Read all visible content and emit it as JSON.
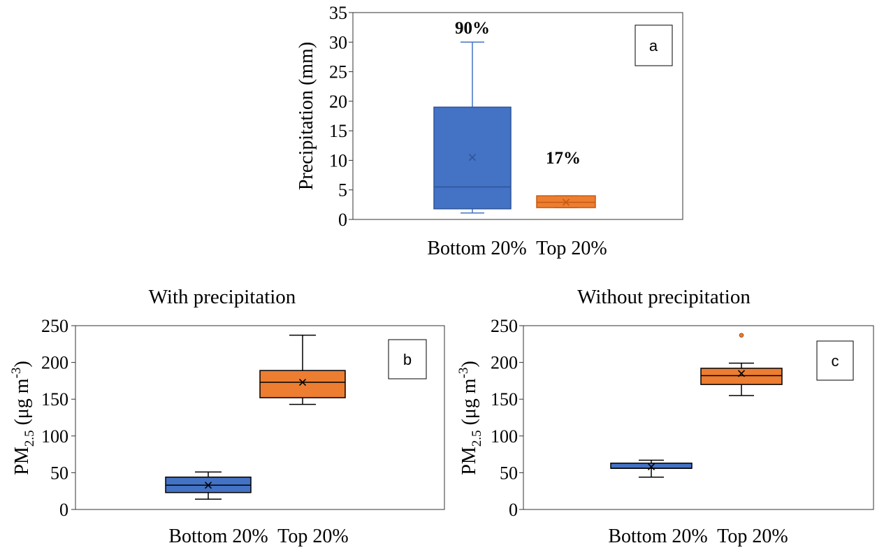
{
  "chart_data": [
    {
      "type": "box",
      "panel": "a",
      "title": "",
      "ylabel": "Precipitation (mm)",
      "ylim": [
        0,
        35
      ],
      "yticks": [
        0,
        5,
        10,
        15,
        20,
        25,
        30,
        35
      ],
      "categories": [
        "Bottom 20%",
        "Top 20%"
      ],
      "category_label": "Bottom 20%  Top 20%",
      "boxes": [
        {
          "name": "Bottom 20%",
          "color": "#4472C4",
          "stroke": "#2F5597",
          "whisker": "#4472C4",
          "mean_color": "#2F5597",
          "min": 1.1,
          "q1": 1.8,
          "median": 5.5,
          "q3": 19.0,
          "max": 30.0,
          "mean": 10.5,
          "outliers": [],
          "annotation": "90%",
          "annotation_y": 32.5
        },
        {
          "name": "Top 20%",
          "color": "#ED7D31",
          "stroke": "#C55A11",
          "whisker": "#ED7D31",
          "mean_color": "#C55A11",
          "min": 2.0,
          "q1": 2.0,
          "median": 2.9,
          "q3": 4.0,
          "max": 4.0,
          "mean": 2.9,
          "outliers": [],
          "annotation": "17%",
          "annotation_y": 10.5
        }
      ]
    },
    {
      "type": "box",
      "panel": "b",
      "title": "With precipitation",
      "ylabel_main": "PM",
      "ylabel_sub": "2.5",
      "ylabel_unit": " (μg m",
      "ylabel_sup": "-3",
      "ylabel_close": ")",
      "ylim": [
        0,
        250
      ],
      "yticks": [
        0,
        50,
        100,
        150,
        200,
        250
      ],
      "categories": [
        "Bottom 20%",
        "Top 20%"
      ],
      "category_label": "Bottom 20%  Top 20%",
      "boxes": [
        {
          "name": "Bottom 20%",
          "color": "#4472C4",
          "stroke": "#000000",
          "whisker": "#000000",
          "mean_color": "#000000",
          "min": 14,
          "q1": 23,
          "median": 33,
          "q3": 44,
          "max": 51,
          "mean": 33,
          "outliers": []
        },
        {
          "name": "Top 20%",
          "color": "#ED7D31",
          "stroke": "#000000",
          "whisker": "#000000",
          "mean_color": "#000000",
          "min": 143,
          "q1": 152,
          "median": 173,
          "q3": 189,
          "max": 237,
          "mean": 173,
          "outliers": []
        }
      ]
    },
    {
      "type": "box",
      "panel": "c",
      "title": "Without precipitation",
      "ylabel_main": "PM",
      "ylabel_sub": "2.5",
      "ylabel_unit": " (μg m",
      "ylabel_sup": "-3",
      "ylabel_close": ")",
      "ylim": [
        0,
        250
      ],
      "yticks": [
        0,
        50,
        100,
        150,
        200,
        250
      ],
      "categories": [
        "Bottom 20%",
        "Top 20%"
      ],
      "category_label": "Bottom 20%  Top 20%",
      "boxes": [
        {
          "name": "Bottom 20%",
          "color": "#4472C4",
          "stroke": "#000000",
          "whisker": "#000000",
          "mean_color": "#000000",
          "min": 44,
          "q1": 56,
          "median": 56,
          "q3": 63,
          "max": 67,
          "mean": 58,
          "outliers": []
        },
        {
          "name": "Top 20%",
          "color": "#ED7D31",
          "stroke": "#000000",
          "whisker": "#000000",
          "mean_color": "#000000",
          "min": 155,
          "q1": 170,
          "median": 182,
          "q3": 192,
          "max": 199,
          "mean": 185,
          "outliers": [
            237
          ]
        }
      ]
    }
  ]
}
